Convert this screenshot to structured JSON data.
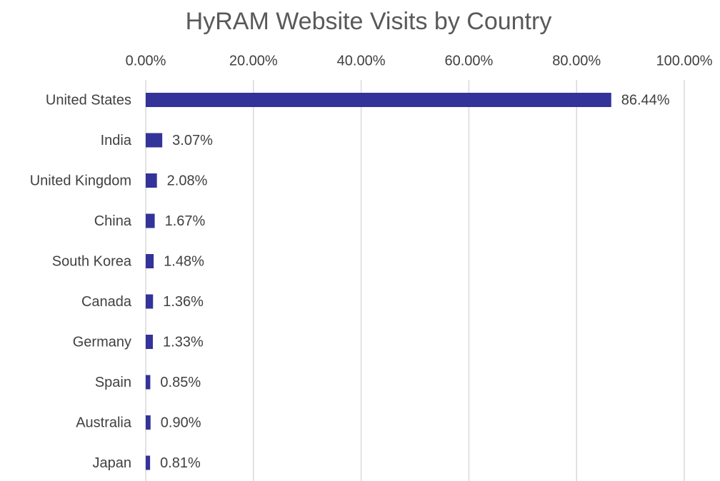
{
  "chart_data": {
    "type": "bar",
    "orientation": "horizontal",
    "title": "HyRAM Website Visits by Country",
    "categories": [
      "United States",
      "India",
      "United Kingdom",
      "China",
      "South Korea",
      "Canada",
      "Germany",
      "Spain",
      "Australia",
      "Japan"
    ],
    "values": [
      86.44,
      3.07,
      2.08,
      1.67,
      1.48,
      1.36,
      1.33,
      0.85,
      0.9,
      0.81
    ],
    "value_labels": [
      "86.44%",
      "3.07%",
      "2.08%",
      "1.67%",
      "1.48%",
      "1.36%",
      "1.33%",
      "0.85%",
      "0.90%",
      "0.81%"
    ],
    "color": "#333399",
    "xlim": [
      0,
      100
    ],
    "xticks": [
      {
        "value": 0,
        "label": "0.00%"
      },
      {
        "value": 20,
        "label": "20.00%"
      },
      {
        "value": 40,
        "label": "40.00%"
      },
      {
        "value": 60,
        "label": "60.00%"
      },
      {
        "value": 80,
        "label": "80.00%"
      },
      {
        "value": 100,
        "label": "100.00%"
      }
    ],
    "grid": true
  }
}
